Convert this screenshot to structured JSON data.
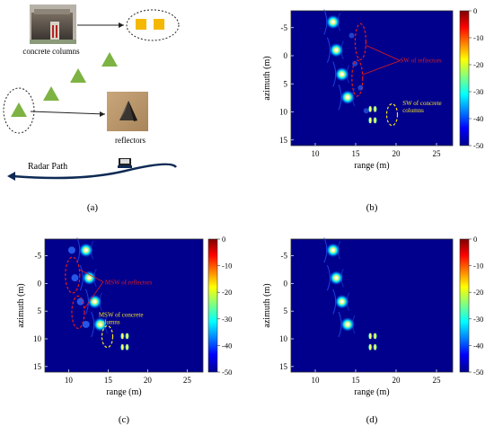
{
  "panels": {
    "a": {
      "label": "(a)",
      "concrete_columns_label": "concrete columns",
      "reflectors_label": "reflectors",
      "radar_path_label": "Radar Path"
    },
    "b": {
      "label": "(b)",
      "annotations": [
        "SW of reflectors",
        "SW of concrete",
        "columns"
      ]
    },
    "c": {
      "label": "(c)",
      "annotations": [
        "MSW of reflectors",
        "MSW of concrete",
        "columns"
      ]
    },
    "d": {
      "label": "(d)"
    }
  },
  "axes": {
    "xlabel": "range (m)",
    "ylabel": "azimuth (m)",
    "xticks": [
      "10",
      "15",
      "20",
      "25"
    ],
    "yticks": [
      "-5",
      "0",
      "5",
      "10",
      "15"
    ],
    "colorbar_ticks": [
      "0",
      "-10",
      "-20",
      "-30",
      "-40",
      "-50"
    ]
  },
  "colors": {
    "background": "#00008c",
    "triangle": "#7cb342",
    "square": "#f5b800",
    "red_annotation": "#e21b1b",
    "yellow_annotation": "#f2e227",
    "radar_path": "#0e2a54"
  },
  "chart_data": {
    "type": "heatmap",
    "xlabel": "range (m)",
    "ylabel": "azimuth (m)",
    "xlim": [
      7,
      27
    ],
    "ylim": [
      16,
      -8
    ],
    "zlim": [
      -50,
      0
    ],
    "colormap": "jet",
    "reflectors": [
      {
        "range": 12.2,
        "azimuth": -6.0
      },
      {
        "range": 12.6,
        "azimuth": -1.0
      },
      {
        "range": 13.3,
        "azimuth": 3.3
      },
      {
        "range": 14.0,
        "azimuth": 7.4
      }
    ],
    "concrete_columns": [
      {
        "range": 16.8,
        "azimuth": 9.5
      },
      {
        "range": 17.4,
        "azimuth": 9.5
      },
      {
        "range": 16.8,
        "azimuth": 11.5
      },
      {
        "range": 17.4,
        "azimuth": 11.5
      }
    ]
  }
}
